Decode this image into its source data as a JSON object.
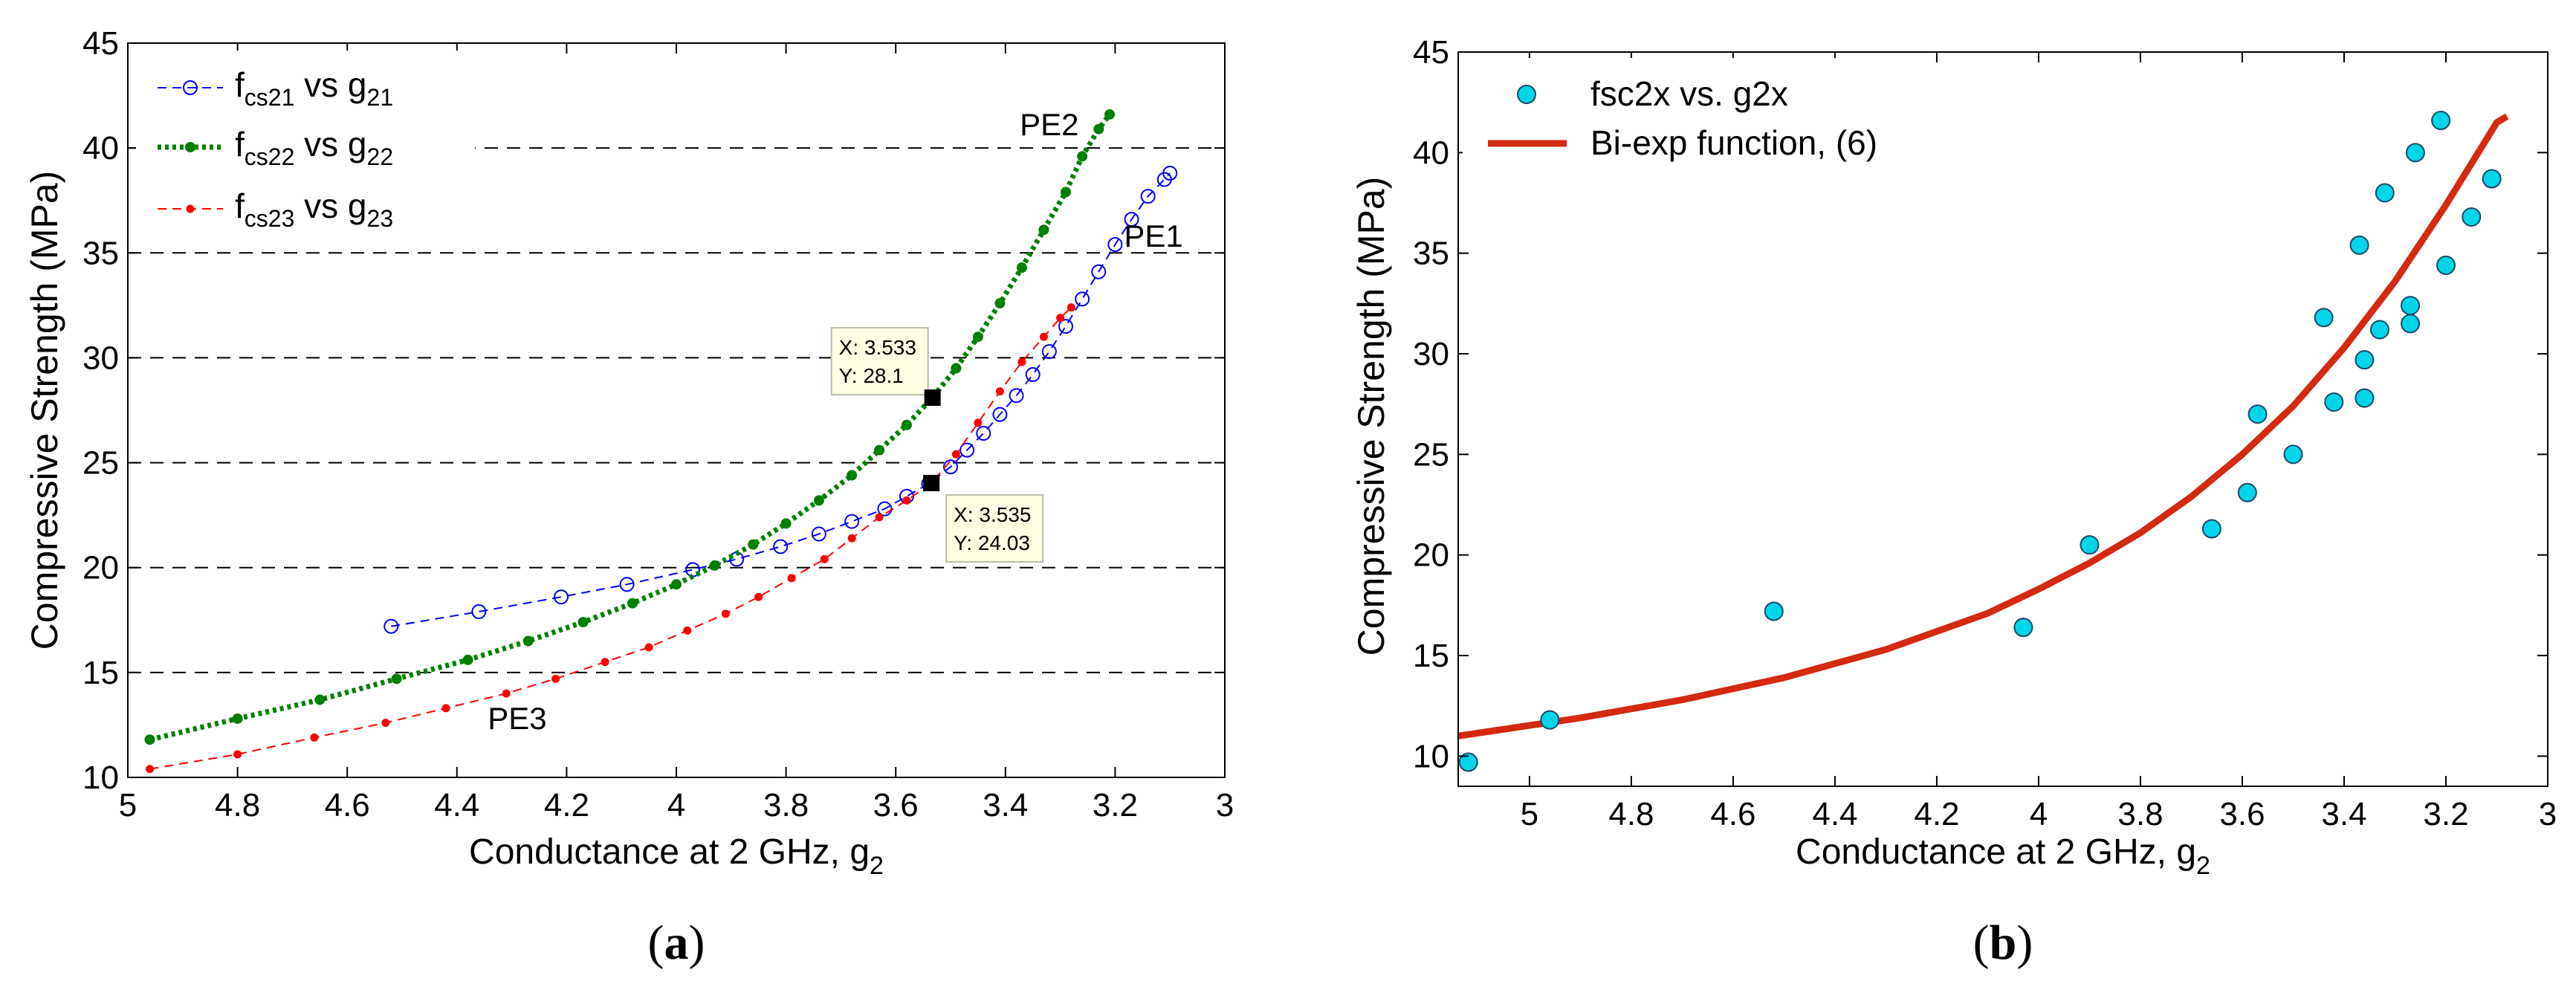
{
  "chart_data": [
    {
      "type": "line",
      "panel_label": "(a)",
      "xlabel": "Conductance at 2 GHz, g",
      "xlabel_sub": "2",
      "ylabel": "Compressive Strength (MPa)",
      "xlim": [
        5,
        3
      ],
      "ylim": [
        10,
        45
      ],
      "x_reversed": true,
      "xticks": [
        5,
        4.8,
        4.6,
        4.4,
        4.2,
        4,
        3.8,
        3.6,
        3.4,
        3.2,
        3
      ],
      "yticks": [
        10,
        15,
        20,
        25,
        30,
        35,
        40,
        45
      ],
      "grid": "horizontal dashed",
      "legend_position": "top-left",
      "series": [
        {
          "name": "fcs21 vs g21",
          "legend": {
            "pre": "f",
            "sub1": "cs21",
            "mid": " vs g",
            "sub2": "21"
          },
          "color": "#0000ff",
          "marker": "open-circle",
          "x": [
            4.52,
            4.36,
            4.21,
            4.09,
            3.97,
            3.89,
            3.81,
            3.74,
            3.68,
            3.62,
            3.58,
            3.54,
            3.5,
            3.47,
            3.44,
            3.41,
            3.38,
            3.35,
            3.32,
            3.29,
            3.26,
            3.23,
            3.2,
            3.17,
            3.14,
            3.11,
            3.1
          ],
          "y": [
            17.2,
            17.9,
            18.6,
            19.2,
            19.9,
            20.4,
            21.0,
            21.6,
            22.2,
            22.8,
            23.4,
            24.0,
            24.8,
            25.6,
            26.4,
            27.3,
            28.2,
            29.2,
            30.3,
            31.5,
            32.8,
            34.1,
            35.4,
            36.6,
            37.7,
            38.5,
            38.8
          ]
        },
        {
          "name": "fcs22 vs g22",
          "legend": {
            "pre": "f",
            "sub1": "cs22",
            "mid": " vs g",
            "sub2": "22"
          },
          "color": "#008000",
          "marker": "filled-dot-thick",
          "x": [
            4.96,
            4.8,
            4.65,
            4.51,
            4.38,
            4.27,
            4.17,
            4.08,
            4.0,
            3.93,
            3.86,
            3.8,
            3.74,
            3.68,
            3.63,
            3.58,
            3.533,
            3.49,
            3.45,
            3.41,
            3.37,
            3.33,
            3.29,
            3.26,
            3.23,
            3.21
          ],
          "y": [
            11.8,
            12.8,
            13.7,
            14.7,
            15.6,
            16.5,
            17.4,
            18.3,
            19.2,
            20.1,
            21.1,
            22.1,
            23.2,
            24.4,
            25.6,
            26.8,
            28.1,
            29.5,
            31.0,
            32.6,
            34.3,
            36.1,
            37.9,
            39.6,
            40.9,
            41.6
          ]
        },
        {
          "name": "fcs23 vs g23",
          "legend": {
            "pre": "f",
            "sub1": "cs23",
            "mid": " vs g",
            "sub2": "23"
          },
          "color": "#ff0000",
          "marker": "filled-dot",
          "x": [
            4.96,
            4.8,
            4.66,
            4.53,
            4.42,
            4.31,
            4.22,
            4.13,
            4.05,
            3.98,
            3.91,
            3.85,
            3.79,
            3.73,
            3.68,
            3.63,
            3.58,
            3.535,
            3.49,
            3.45,
            3.41,
            3.37,
            3.33,
            3.3,
            3.28
          ],
          "y": [
            10.4,
            11.1,
            11.9,
            12.6,
            13.3,
            14.0,
            14.7,
            15.5,
            16.2,
            17.0,
            17.8,
            18.6,
            19.5,
            20.4,
            21.4,
            22.4,
            23.2,
            24.03,
            25.4,
            26.9,
            28.4,
            29.8,
            31.0,
            31.9,
            32.4
          ]
        }
      ],
      "annotations": [
        {
          "text": "PE2",
          "x": 3.32,
          "y": 40.6
        },
        {
          "text": "PE1",
          "x": 3.13,
          "y": 35.3
        },
        {
          "text": "PE3",
          "x": 4.29,
          "y": 12.3
        }
      ],
      "datatips": [
        {
          "x": 3.533,
          "y": 28.1,
          "x_text": "X: 3.533",
          "y_text": "Y: 28.1",
          "box_side": "upper-left"
        },
        {
          "x": 3.535,
          "y": 24.03,
          "x_text": "X: 3.535",
          "y_text": "Y: 24.03",
          "box_side": "lower-right"
        }
      ]
    },
    {
      "type": "scatter",
      "panel_label": "(b)",
      "xlabel": "Conductance at 2 GHz, g",
      "xlabel_sub": "2",
      "ylabel": "Compressive Strength (MPa)",
      "xlim": [
        5.14,
        3
      ],
      "ylim": [
        8.5,
        45
      ],
      "x_reversed": true,
      "xticks": [
        5,
        4.8,
        4.6,
        4.4,
        4.2,
        4,
        3.8,
        3.6,
        3.4,
        3.2,
        3
      ],
      "yticks": [
        10,
        15,
        20,
        25,
        30,
        35,
        40,
        45
      ],
      "grid": "none",
      "legend_position": "top-left",
      "series": [
        {
          "name": "fsc2x vs. g2x",
          "color": "#00d4e8",
          "marker": "filled-circle",
          "x": [
            5.12,
            4.96,
            4.52,
            4.03,
            3.9,
            3.66,
            3.59,
            3.57,
            3.5,
            3.44,
            3.42,
            3.37,
            3.36,
            3.36,
            3.33,
            3.32,
            3.27,
            3.27,
            3.26,
            3.21,
            3.2,
            3.15,
            3.11
          ],
          "y": [
            9.7,
            11.8,
            17.2,
            16.4,
            20.5,
            21.3,
            23.1,
            27.0,
            25.0,
            31.8,
            27.6,
            35.4,
            29.7,
            27.8,
            31.2,
            38.0,
            32.4,
            31.5,
            40.0,
            41.6,
            34.4,
            36.8,
            38.7
          ]
        },
        {
          "name": "Bi-exp function, (6)",
          "color": "#d42a10",
          "marker": "none",
          "line": "thick-solid",
          "x": [
            5.14,
            4.9,
            4.7,
            4.5,
            4.3,
            4.1,
            4.0,
            3.9,
            3.8,
            3.7,
            3.6,
            3.5,
            3.4,
            3.3,
            3.2,
            3.1,
            3.08
          ],
          "y": [
            11.0,
            11.9,
            12.8,
            13.9,
            15.3,
            17.1,
            18.3,
            19.6,
            21.1,
            22.9,
            25.0,
            27.4,
            30.3,
            33.6,
            37.4,
            41.5,
            41.8
          ]
        }
      ]
    }
  ]
}
